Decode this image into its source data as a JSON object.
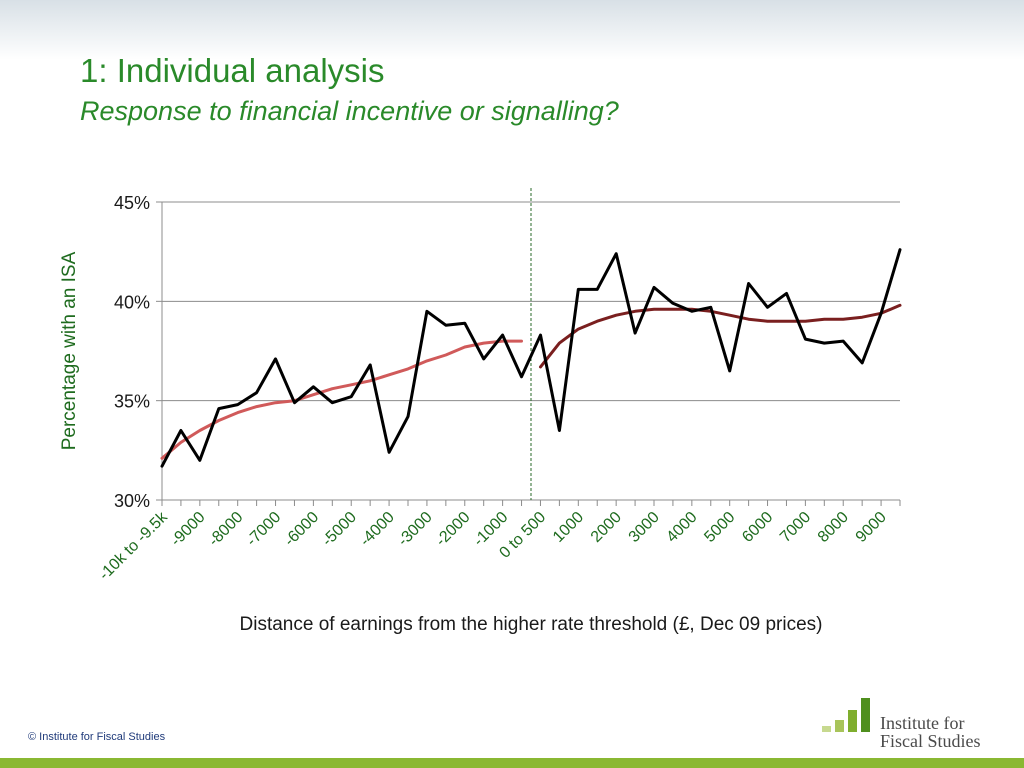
{
  "header": {
    "title": "1: Individual analysis",
    "subtitle": "Response to financial incentive or signalling?"
  },
  "footer": {
    "copyright": "© Institute for Fiscal Studies",
    "logo_line1": "Institute for",
    "logo_line2": "Fiscal Studies"
  },
  "colors": {
    "title": "#2a8a2a",
    "actual_line": "#000000",
    "fit_left": "#d05a5a",
    "fit_right": "#7a1f1f",
    "threshold": "#2a6a2a",
    "footer_bar": "#8ab832"
  },
  "chart_data": {
    "type": "line",
    "ylabel": "Percentage with an ISA",
    "xlabel": "Distance of earnings from the higher rate threshold (£, Dec 09 prices)",
    "ylim": [
      30,
      45
    ],
    "yticks": [
      "30%",
      "35%",
      "40%",
      "45%"
    ],
    "grid": true,
    "categories": [
      "-10k to -9.5k",
      "-9000",
      "-8000",
      "-7000",
      "-6000",
      "-5000",
      "-4000",
      "-3000",
      "-2000",
      "-1000",
      "0 to 500",
      "1000",
      "2000",
      "3000",
      "4000",
      "5000",
      "6000",
      "7000",
      "8000",
      "9000"
    ],
    "x": [
      -10000,
      -9500,
      -9000,
      -8500,
      -8000,
      -7500,
      -7000,
      -6500,
      -6000,
      -5500,
      -5000,
      -4500,
      -4000,
      -3500,
      -3000,
      -2500,
      -2000,
      -1500,
      -1000,
      -500,
      0,
      500,
      1000,
      1500,
      2000,
      2500,
      3000,
      3500,
      4000,
      4500,
      5000,
      5500,
      6000,
      6500,
      7000,
      7500,
      8000,
      8500,
      9000,
      9500
    ],
    "series": [
      {
        "values": [
          31.7,
          33.5,
          32.0,
          34.6,
          34.8,
          35.4,
          37.1,
          34.9,
          35.7,
          34.9,
          35.2,
          36.8,
          32.4,
          34.2,
          39.5,
          38.8,
          38.9,
          37.1,
          38.3,
          36.2,
          38.3,
          33.5,
          40.6,
          40.6,
          42.4,
          38.4,
          40.7,
          39.9,
          39.5,
          39.7,
          36.5,
          40.9,
          39.7,
          40.4,
          38.1,
          37.9,
          38.0,
          36.9,
          39.4,
          42.6
        ]
      },
      {
        "x": [
          -10000,
          -9500,
          -9000,
          -8500,
          -8000,
          -7500,
          -7000,
          -6500,
          -6000,
          -5500,
          -5000,
          -4500,
          -4000,
          -3500,
          -3000,
          -2500,
          -2000,
          -1500,
          -1000,
          -500
        ],
        "values": [
          32.1,
          32.9,
          33.5,
          34.0,
          34.4,
          34.7,
          34.9,
          35.0,
          35.3,
          35.6,
          35.8,
          36.0,
          36.3,
          36.6,
          37.0,
          37.3,
          37.7,
          37.9,
          38.0,
          38.0
        ]
      },
      {
        "x": [
          0,
          500,
          1000,
          1500,
          2000,
          2500,
          3000,
          3500,
          4000,
          4500,
          5000,
          5500,
          6000,
          6500,
          7000,
          7500,
          8000,
          8500,
          9000,
          9500
        ],
        "values": [
          36.7,
          37.9,
          38.6,
          39.0,
          39.3,
          39.5,
          39.6,
          39.6,
          39.6,
          39.5,
          39.3,
          39.1,
          39.0,
          39.0,
          39.0,
          39.1,
          39.1,
          39.2,
          39.4,
          39.8
        ]
      }
    ],
    "threshold_x": -250
  }
}
